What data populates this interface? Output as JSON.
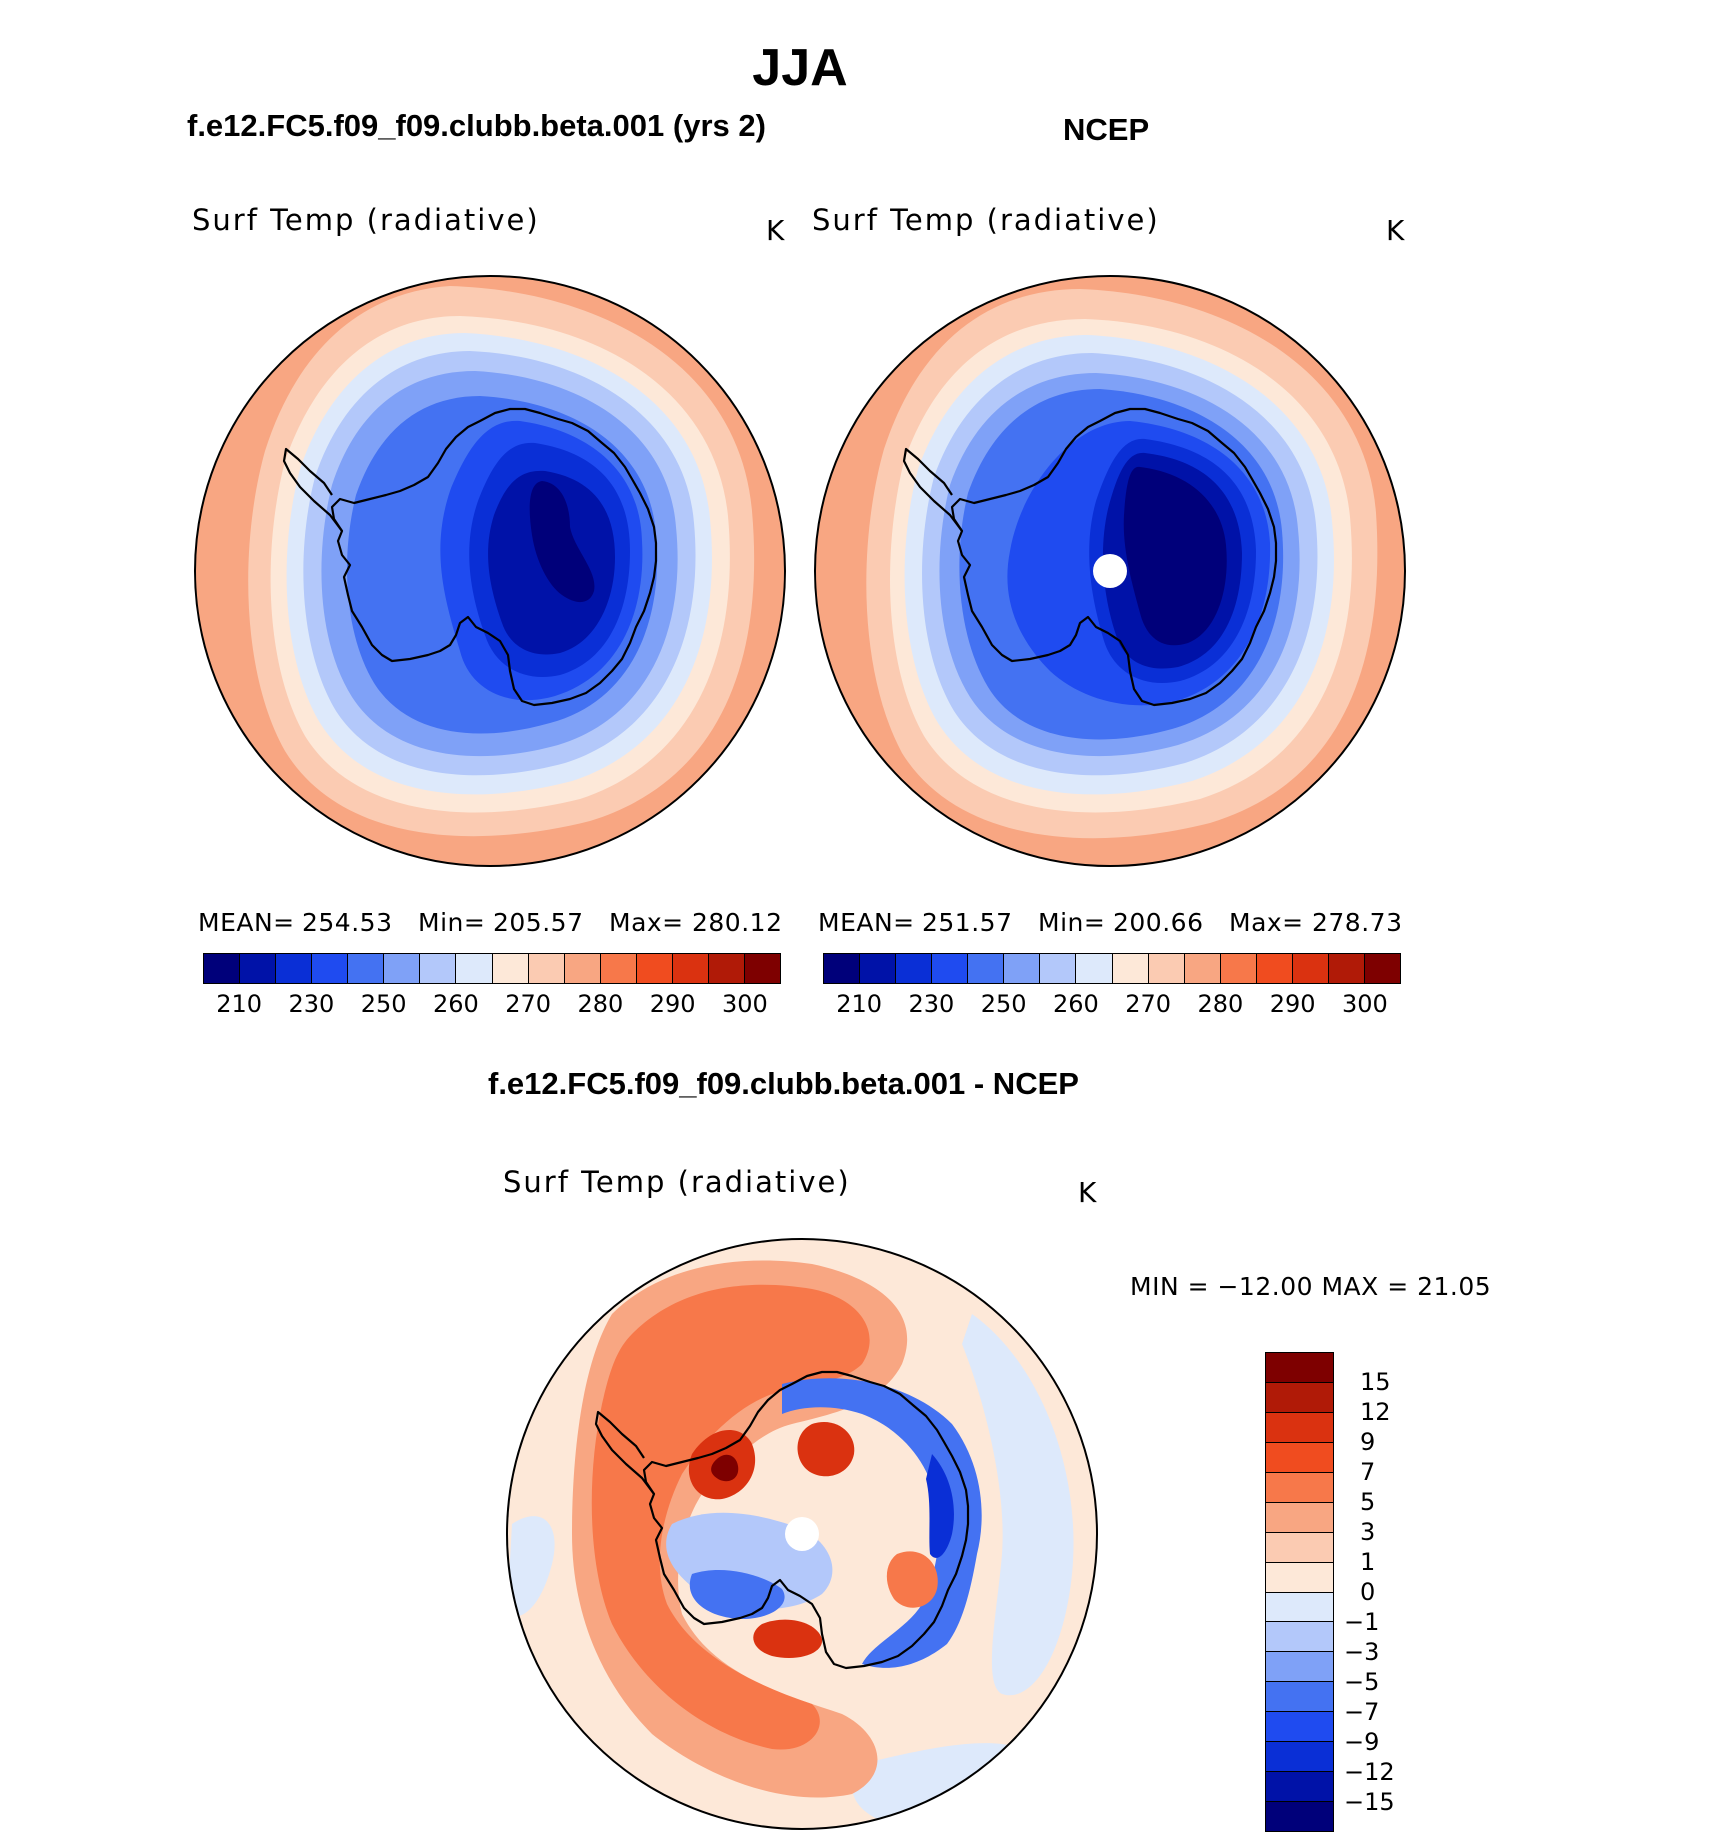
{
  "title": "JJA",
  "left_subtitle": "f.e12.FC5.f09_f09.clubb.beta.001 (yrs 2)",
  "right_subtitle": "NCEP",
  "diff_title": "f.e12.FC5.f09_f09.clubb.beta.001 - NCEP",
  "panels": {
    "model": {
      "variable": "Surf Temp (radiative)",
      "units": "K",
      "stats": {
        "mean_label": "MEAN=",
        "mean": "254.53",
        "min_label": "Min=",
        "min": "205.57",
        "max_label": "Max=",
        "max": "280.12"
      }
    },
    "obs": {
      "variable": "Surf Temp (radiative)",
      "units": "K",
      "stats": {
        "mean_label": "MEAN=",
        "mean": "251.57",
        "min_label": "Min=",
        "min": "200.66",
        "max_label": "Max=",
        "max": "278.73"
      }
    },
    "diff": {
      "variable": "Surf Temp (radiative)",
      "units": "K",
      "minmax_text": "MIN = −12.00 MAX =   21.05"
    }
  },
  "abs_colorbar": {
    "tick_labels": [
      "210",
      "230",
      "250",
      "260",
      "270",
      "280",
      "290",
      "300"
    ],
    "colors": [
      "#00007a",
      "#0012a8",
      "#0a2fd6",
      "#1f4bf0",
      "#4472f2",
      "#7fa1f7",
      "#b3c8fa",
      "#dde9fb",
      "#fde8d8",
      "#fbcbb2",
      "#f8a682",
      "#f7784a",
      "#f04c1f",
      "#da3210",
      "#b01a07",
      "#7e0000"
    ]
  },
  "diff_colorbar": {
    "tick_labels": [
      "15",
      "12",
      "9",
      "7",
      "5",
      "3",
      "1",
      "0",
      "−1",
      "−3",
      "−5",
      "−7",
      "−9",
      "−12",
      "−15"
    ],
    "colors": [
      "#7e0000",
      "#b01a07",
      "#da3210",
      "#f04c1f",
      "#f7784a",
      "#f8a682",
      "#fbcbb2",
      "#fde8d8",
      "#dde9fb",
      "#b3c8fa",
      "#7fa1f7",
      "#4472f2",
      "#1f4bf0",
      "#0a2fd6",
      "#0012a8",
      "#00007a"
    ]
  },
  "map_colors": {
    "t_ocean_warm": "#f8a682",
    "t_ocean_mid": "#fbcbb2",
    "t_ocean_cool": "#fde8d8",
    "t_ice_edge": "#dde9fb",
    "t_pale_blue": "#b3c8fa",
    "t_light_blue": "#7fa1f7",
    "t_mid_blue": "#4472f2",
    "t_blue": "#1f4bf0",
    "t_deep_blue": "#0a2fd6",
    "t_darker_blue": "#0012a8",
    "t_darkest": "#00007a",
    "d_neutral": "#fde8d8",
    "d_warm_light": "#fbcbb2",
    "d_warm": "#f8a682",
    "d_warmer": "#f7784a",
    "d_hot": "#da3210",
    "d_hottest": "#7e0000",
    "d_cool_light": "#dde9fb",
    "d_cool": "#b3c8fa",
    "d_cooler": "#4472f2",
    "d_cold": "#0a2fd6",
    "coast": "#000000",
    "pole_hole": "#ffffff"
  }
}
